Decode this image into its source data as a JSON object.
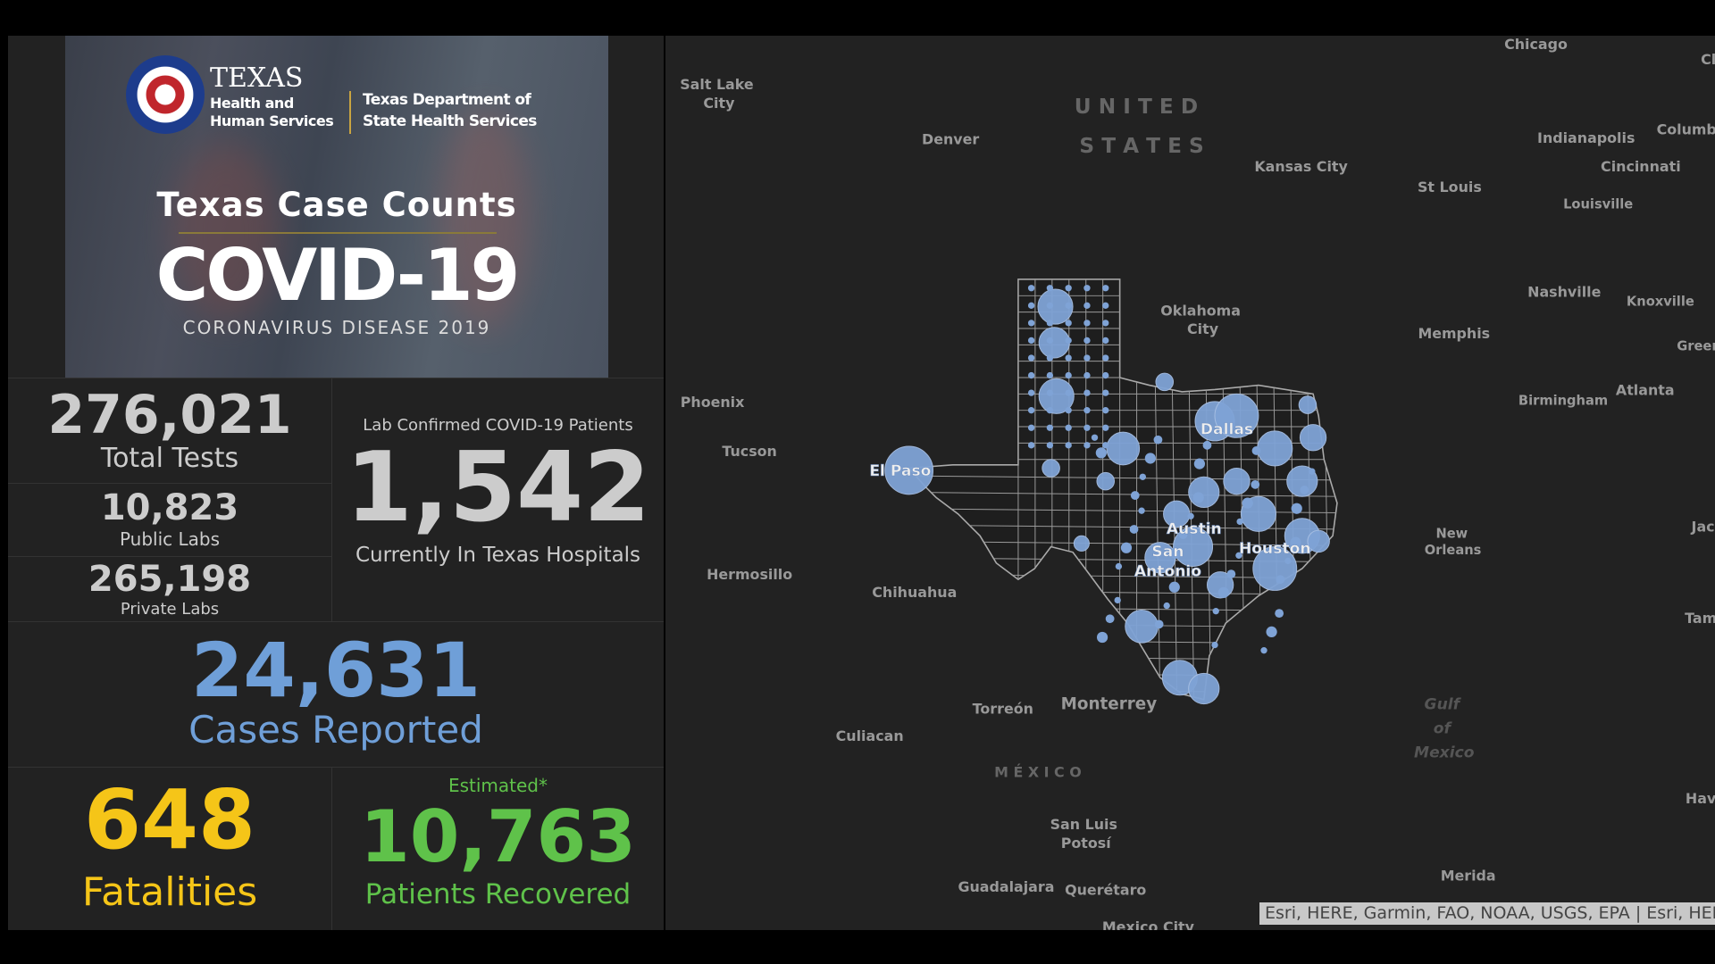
{
  "banner": {
    "seal_icon": "star-seal-icon",
    "hhs_title": "TEXAS",
    "hhs_sub": "Health and Human Services",
    "dshs": "Texas Department of State Health Services",
    "title": "Texas Case Counts",
    "covid": "COVID-19",
    "subtitle": "CORONAVIRUS DISEASE 2019"
  },
  "stats": {
    "total_tests": {
      "value": "276,021",
      "label": "Total Tests"
    },
    "public_labs": {
      "value": "10,823",
      "label": "Public Labs"
    },
    "private_labs": {
      "value": "265,198",
      "label": "Private Labs"
    },
    "hospital": {
      "heading": "Lab Confirmed COVID-19 Patients",
      "value": "1,542",
      "label": "Currently In Texas Hospitals"
    },
    "cases": {
      "value": "24,631",
      "label": "Cases Reported",
      "color": "#6f9fd8"
    },
    "fatalities": {
      "value": "648",
      "label": "Fatalities",
      "color": "#f5c518"
    },
    "recovered": {
      "note": "Estimated*",
      "value": "10,763",
      "label": "Patients Recovered",
      "color": "#5fc24a"
    }
  },
  "map": {
    "bubble_color": "#7fa3d6",
    "country_labels": {
      "us1": "U N I T E D",
      "us2": "S T A T E S",
      "mx": "M É X I C O",
      "gulf1": "Gulf",
      "gulf2": "of",
      "gulf3": "Mexico"
    },
    "cities": [
      "Chicago",
      "Salt Lake",
      "City",
      "Denver",
      "Kansas City",
      "St Louis",
      "Indianapolis",
      "Columb",
      "Cincinnati",
      "Louisville",
      "Cl",
      "Oklahoma",
      "City",
      "Nashville",
      "Knoxville",
      "Memphis",
      "Greer",
      "Phoenix",
      "Atlanta",
      "Birmingham",
      "Tucson",
      "El Paso",
      "Dallas",
      "Austin",
      "San",
      "Antonio",
      "Houston",
      "New",
      "Orleans",
      "Jac",
      "Hermosillo",
      "Chihuahua",
      "Tam",
      "Torreón",
      "Monterrey",
      "Culiacan",
      "Hav",
      "San Luis",
      "Potosí",
      "Merida",
      "Guadalajara",
      "Querétaro",
      "Mexico City"
    ],
    "attribution": "Esri, HERE, Garmin, FAO, NOAA, USGS, EPA | Esri, HERE"
  }
}
